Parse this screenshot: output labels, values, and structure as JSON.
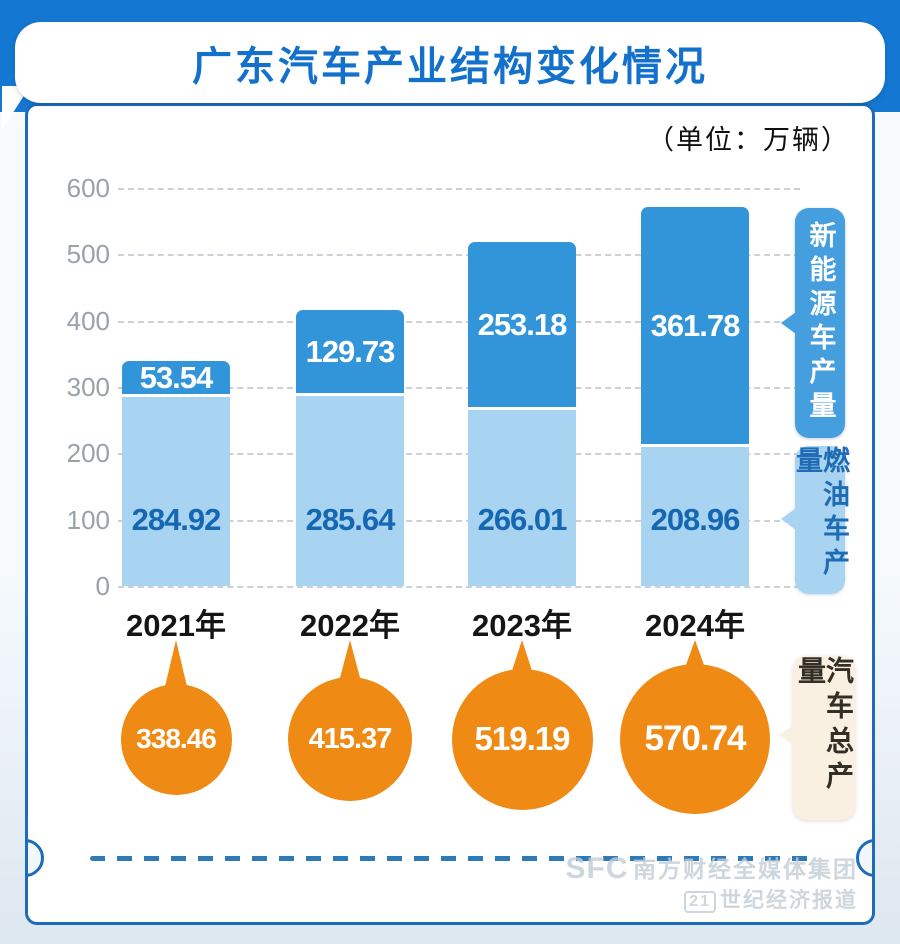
{
  "header": {
    "title": "广东汽车产业结构变化情况",
    "unit_label": "（单位：万辆）"
  },
  "chart_data": {
    "type": "bar",
    "stacked": true,
    "title": "广东汽车产业结构变化情况",
    "unit": "万辆",
    "categories": [
      "2021年",
      "2022年",
      "2023年",
      "2024年"
    ],
    "series": [
      {
        "name": "新能源车产量",
        "color": "#3295da",
        "values": [
          53.54,
          129.73,
          253.18,
          361.78
        ]
      },
      {
        "name": "燃油车产量",
        "color": "#a8d3f1",
        "values": [
          284.92,
          285.64,
          266.01,
          208.96
        ]
      }
    ],
    "totals": {
      "label": "汽车总产量",
      "color": "#ef8a14",
      "values": [
        338.46,
        415.37,
        519.19,
        570.74
      ]
    },
    "ylim": [
      0,
      600
    ],
    "yticks": [
      0,
      100,
      200,
      300,
      400,
      500,
      600
    ],
    "grid": true,
    "legend_position": "right"
  },
  "legend": {
    "nev_label": "新能源车产量",
    "fuel_label": "燃油车产量",
    "total_label": "汽车总产量"
  },
  "colors": {
    "header_blue": "#1477d2",
    "title_text": "#1371cb",
    "nev_bar": "#3295da",
    "fuel_bar": "#a8d3f1",
    "fuel_value_text": "#1467b0",
    "total_orange": "#ef8a14",
    "card_border": "#1d6cb8",
    "total_callout_bg": "#faf0e1"
  },
  "watermark": {
    "brand": "SFC",
    "line1": "南方财经全媒体集团",
    "line2_badge": "21",
    "line2": "世纪经济报道"
  }
}
